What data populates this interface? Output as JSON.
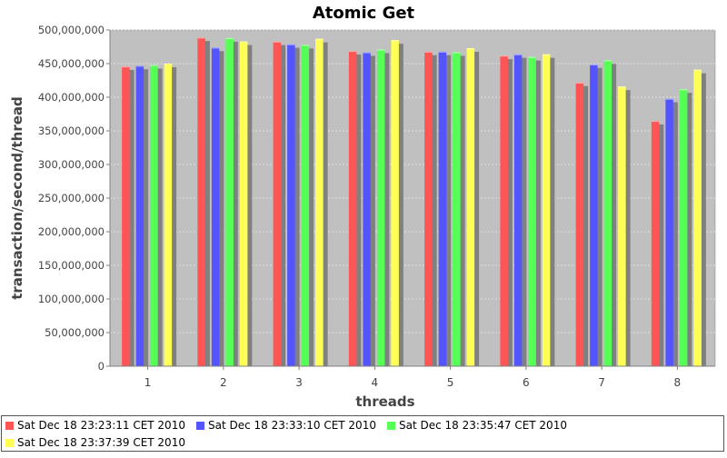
{
  "chart_data": {
    "type": "bar",
    "title": "Atomic Get",
    "xlabel": "threads",
    "ylabel": "transaction/second/thread",
    "categories": [
      "1",
      "2",
      "3",
      "4",
      "5",
      "6",
      "7",
      "8"
    ],
    "ylim": [
      0,
      500000000
    ],
    "yticks": [
      0,
      50000000,
      100000000,
      150000000,
      200000000,
      250000000,
      300000000,
      350000000,
      400000000,
      450000000,
      500000000
    ],
    "ytick_labels": [
      "0",
      "50,000,000",
      "100,000,000",
      "150,000,000",
      "200,000,000",
      "250,000,000",
      "300,000,000",
      "350,000,000",
      "400,000,000",
      "450,000,000",
      "500,000,000"
    ],
    "grid": true,
    "legend_position": "bottom",
    "series": [
      {
        "name": "Sat Dec 18 23:23:11 CET 2010",
        "color": "#ff5555",
        "values": [
          446000000,
          489000000,
          483000000,
          469000000,
          468000000,
          462000000,
          422000000,
          365000000
        ]
      },
      {
        "name": "Sat Dec 18 23:33:10 CET 2010",
        "color": "#5555ff",
        "values": [
          447000000,
          474000000,
          479000000,
          467000000,
          468000000,
          464000000,
          449000000,
          398000000
        ]
      },
      {
        "name": "Sat Dec 18 23:35:47 CET 2010",
        "color": "#55ff55",
        "values": [
          448000000,
          488000000,
          478000000,
          471000000,
          467000000,
          460000000,
          455000000,
          412000000
        ]
      },
      {
        "name": "Sat Dec 18 23:37:39 CET 2010",
        "color": "#ffff55",
        "values": [
          450000000,
          483000000,
          487000000,
          485000000,
          473000000,
          464000000,
          416000000,
          441000000
        ]
      }
    ],
    "plot_background": "#c0c0c0",
    "shadow_color": "#808080"
  }
}
